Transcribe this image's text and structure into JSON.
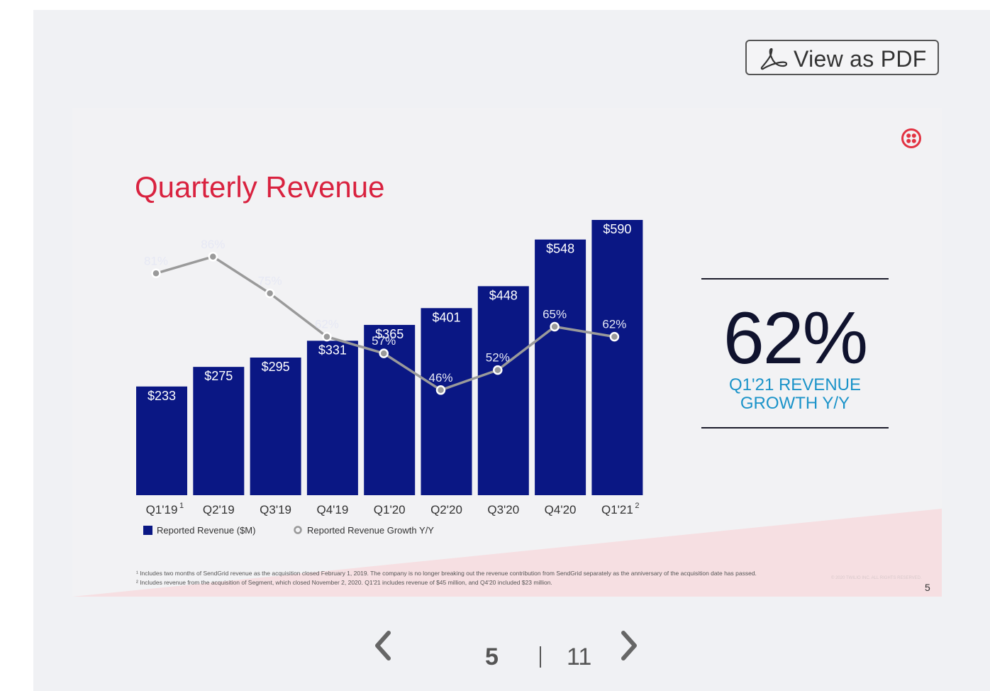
{
  "toolbar": {
    "pdf_label": "View as PDF",
    "pdf_icon": "acrobat-icon"
  },
  "slide": {
    "title": "Quarterly Revenue",
    "logo_icon": "twilio-logo-icon",
    "kpi": {
      "value": "62%",
      "caption_line1": "Q1'21 REVENUE",
      "caption_line2": "GROWTH Y/Y"
    },
    "footnotes": [
      "¹ Includes two months of SendGrid revenue as the acquisition closed February 1, 2019. The company is no longer breaking out the revenue contribution from SendGrid separately as the anniversary of the acquisition date has passed.",
      "² Includes revenue from the acquisition of Segment, which closed November 2, 2020. Q1'21 includes revenue of $45 million, and Q4'20 included $23 million."
    ],
    "copyright": "© 2020 TWILIO INC. ALL RIGHTS RESERVED.",
    "page_number": "5"
  },
  "chart_data": {
    "type": "bar",
    "title": "Quarterly Revenue",
    "categories": [
      "Q1'19",
      "Q2'19",
      "Q3'19",
      "Q4'19",
      "Q1'20",
      "Q2'20",
      "Q3'20",
      "Q4'20",
      "Q1'21"
    ],
    "category_superscripts": [
      "1",
      "",
      "",
      "",
      "",
      "",
      "",
      "",
      "2"
    ],
    "series": [
      {
        "name": "Reported Revenue ($M)",
        "type": "bar",
        "color": "#0a1784",
        "values": [
          233,
          275,
          295,
          331,
          365,
          401,
          448,
          548,
          590
        ],
        "labels": [
          "$233",
          "$275",
          "$295",
          "$331",
          "$365",
          "$401",
          "$448",
          "$548",
          "$590"
        ]
      },
      {
        "name": "Reported Revenue Growth Y/Y",
        "type": "line",
        "color": "#9a9a9a",
        "values": [
          81,
          86,
          75,
          62,
          57,
          46,
          52,
          65,
          62
        ],
        "labels": [
          "81%",
          "86%",
          "75%",
          "62%",
          "57%",
          "46%",
          "52%",
          "65%",
          "62%"
        ]
      }
    ],
    "ylim": [
      0,
      600
    ],
    "y2lim": [
      0,
      100
    ],
    "legend": [
      "Reported Revenue ($M)",
      "Reported Revenue Growth Y/Y"
    ]
  },
  "pager": {
    "current": "5",
    "total": "11",
    "prev_icon": "chevron-left-icon",
    "next_icon": "chevron-right-icon"
  },
  "colors": {
    "accent_red": "#d9223f",
    "bar_blue": "#0a1784",
    "kpi_blue": "#1a93c9"
  }
}
